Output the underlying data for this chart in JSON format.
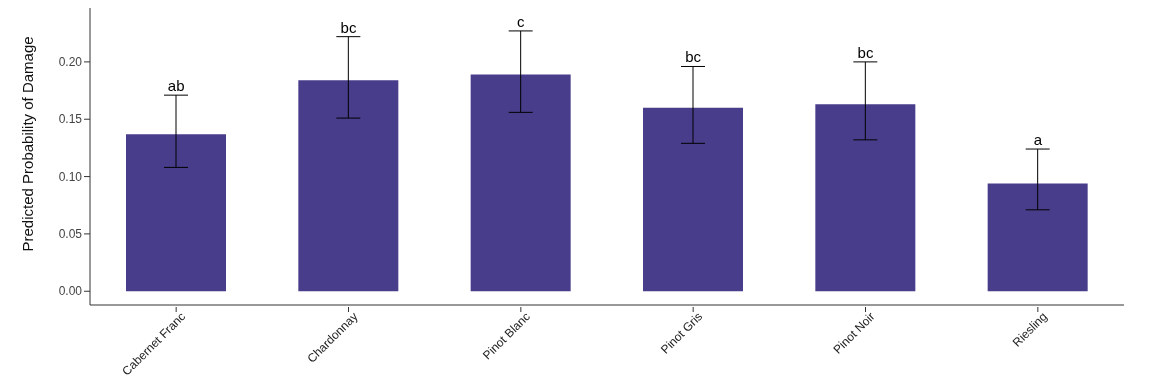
{
  "chart_data": {
    "type": "bar",
    "ylabel": "Predicted Probability of Damage",
    "categories": [
      "Cabernet Franc",
      "Chardonnay",
      "Pinot Blanc",
      "Pinot Gris",
      "Pinot Noir",
      "Riesling"
    ],
    "values": [
      0.137,
      0.184,
      0.189,
      0.16,
      0.163,
      0.094
    ],
    "errors": [
      [
        0.108,
        0.171
      ],
      [
        0.151,
        0.222
      ],
      [
        0.156,
        0.227
      ],
      [
        0.129,
        0.196
      ],
      [
        0.132,
        0.2
      ],
      [
        0.071,
        0.124
      ]
    ],
    "color": "#483d8b",
    "ylim": [
      -0.012,
      0.247
    ],
    "yticks": [
      {
        "value": 0,
        "label": "0.00"
      },
      {
        "value": 0.05,
        "label": "0.05"
      },
      {
        "value": 0.1,
        "label": "0.10"
      },
      {
        "value": 0.15,
        "label": "0.15"
      },
      {
        "value": 0.2,
        "label": "0.20"
      }
    ],
    "grid": false,
    "annotations": [
      {
        "text": "ab",
        "x": "Cabernet Franc",
        "y": 0.171
      },
      {
        "text": "bc",
        "x": "Chardonnay",
        "y": 0.222
      },
      {
        "text": "c",
        "x": "Pinot Blanc",
        "y": 0.227
      },
      {
        "text": "bc",
        "x": "Pinot Gris",
        "y": 0.196
      },
      {
        "text": "bc",
        "x": "Pinot Noir",
        "y": 0.2
      },
      {
        "text": "a",
        "x": "Riesling",
        "y": 0.124
      }
    ]
  }
}
